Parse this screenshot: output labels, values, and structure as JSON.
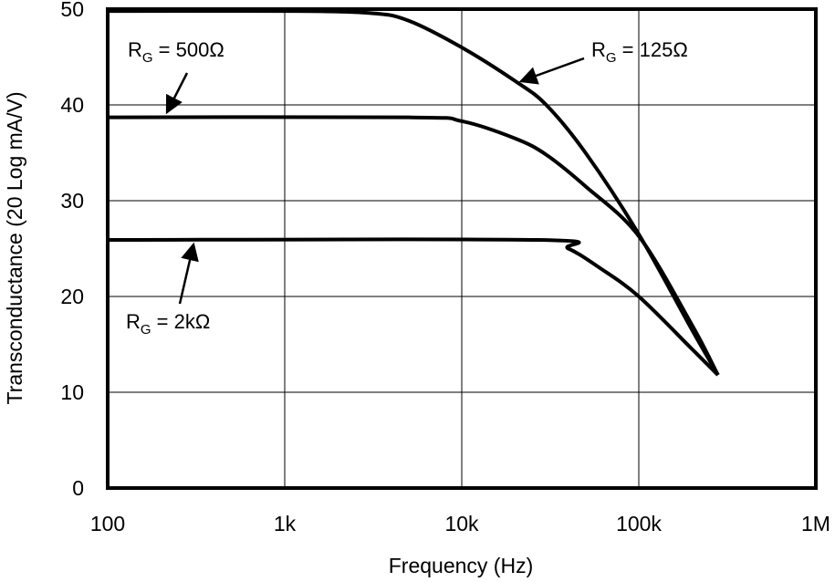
{
  "chart_data": {
    "type": "line",
    "title": "",
    "xlabel": "Frequency (Hz)",
    "ylabel": "Transconductance (20 Log mA/V)",
    "xscale": "log",
    "xlim": [
      100,
      1000000
    ],
    "ylim": [
      0,
      50
    ],
    "grid": true,
    "xticks": [
      100,
      1000,
      10000,
      100000,
      1000000
    ],
    "xtick_labels": [
      "100",
      "1k",
      "10k",
      "100k",
      "1M"
    ],
    "yticks": [
      0,
      10,
      20,
      30,
      40,
      50
    ],
    "ytick_labels": [
      "0",
      "10",
      "20",
      "30",
      "40",
      "50"
    ],
    "series": [
      {
        "name": "RG = 125Ω",
        "x": [
          100,
          1000,
          3000,
          5000,
          10000,
          20000,
          30000,
          50000,
          100000,
          200000,
          280000
        ],
        "y": [
          49.8,
          49.8,
          49.6,
          48.8,
          46,
          42.5,
          40,
          35,
          26.5,
          16.5,
          11.8
        ]
      },
      {
        "name": "RG = 500Ω",
        "x": [
          100,
          5000,
          10000,
          20000,
          30000,
          50000,
          100000,
          200000,
          280000
        ],
        "y": [
          38.7,
          38.7,
          38.3,
          36.5,
          34.8,
          31.5,
          26.3,
          17,
          11.8
        ]
      },
      {
        "name": "RG = 2kΩ",
        "x": [
          100,
          27000,
          40000,
          60000,
          100000,
          200000,
          280000
        ],
        "y": [
          25.9,
          25.9,
          25,
          23,
          20,
          14.5,
          11.8
        ]
      }
    ],
    "annotations": [
      {
        "main": "R",
        "sub": "G",
        "rest": " = 500Ω"
      },
      {
        "main": "R",
        "sub": "G",
        "rest": " = 125Ω"
      },
      {
        "main": "R",
        "sub": "G",
        "rest": " = 2kΩ"
      }
    ],
    "line_color": "#000000",
    "grid_color": "#000000"
  }
}
